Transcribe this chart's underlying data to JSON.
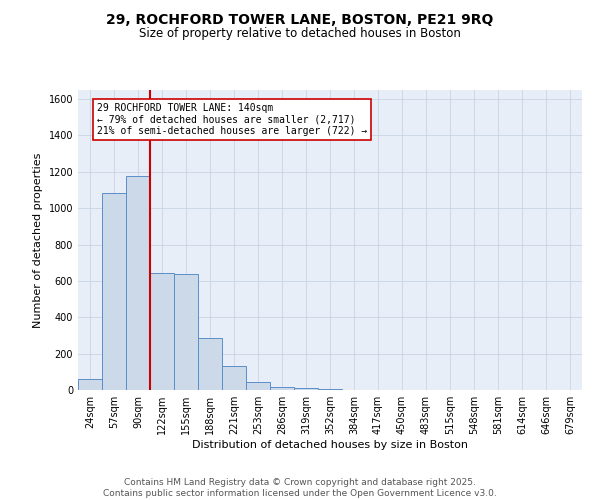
{
  "title1": "29, ROCHFORD TOWER LANE, BOSTON, PE21 9RQ",
  "title2": "Size of property relative to detached houses in Boston",
  "xlabel": "Distribution of detached houses by size in Boston",
  "ylabel": "Number of detached properties",
  "bin_labels": [
    "24sqm",
    "57sqm",
    "90sqm",
    "122sqm",
    "155sqm",
    "188sqm",
    "221sqm",
    "253sqm",
    "286sqm",
    "319sqm",
    "352sqm",
    "384sqm",
    "417sqm",
    "450sqm",
    "483sqm",
    "515sqm",
    "548sqm",
    "581sqm",
    "614sqm",
    "646sqm",
    "679sqm"
  ],
  "bin_values": [
    60,
    1085,
    1175,
    645,
    640,
    285,
    130,
    42,
    18,
    10,
    8,
    0,
    0,
    0,
    0,
    0,
    0,
    0,
    0,
    0,
    0
  ],
  "bar_color": "#ccd9e8",
  "bar_edge_color": "#5b8fc9",
  "vline_color": "#cc0000",
  "vline_x": 2.5,
  "annotation_line1": "29 ROCHFORD TOWER LANE: 140sqm",
  "annotation_line2": "← 79% of detached houses are smaller (2,717)",
  "annotation_line3": "21% of semi-detached houses are larger (722) →",
  "annotation_box_color": "white",
  "annotation_box_edge": "#cc0000",
  "ylim": [
    0,
    1650
  ],
  "yticks": [
    0,
    200,
    400,
    600,
    800,
    1000,
    1200,
    1400,
    1600
  ],
  "grid_color": "#c8d4e4",
  "background_color": "#e8eef8",
  "footer": "Contains HM Land Registry data © Crown copyright and database right 2025.\nContains public sector information licensed under the Open Government Licence v3.0.",
  "title_fontsize": 10,
  "subtitle_fontsize": 8.5,
  "tick_fontsize": 7,
  "ylabel_fontsize": 8,
  "xlabel_fontsize": 8,
  "footer_fontsize": 6.5,
  "annotation_fontsize": 7
}
